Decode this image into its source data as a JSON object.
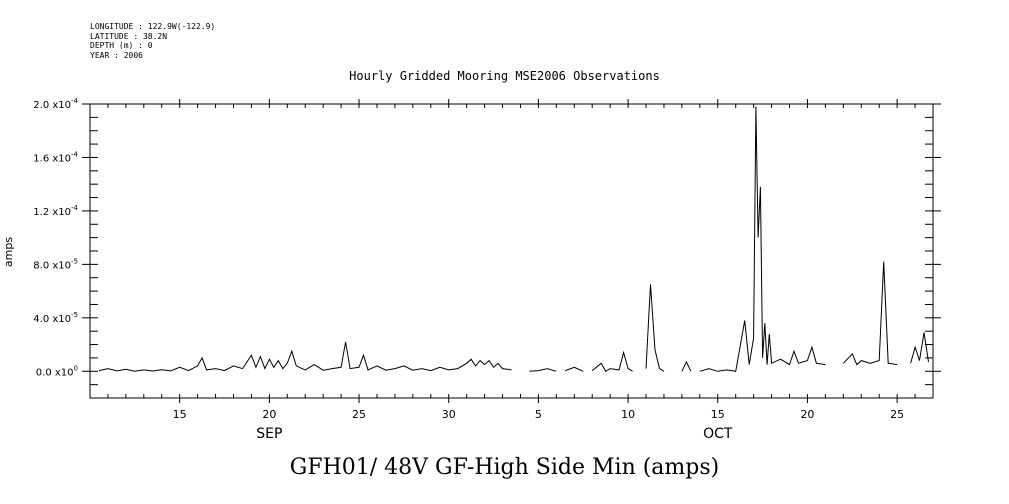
{
  "meta_lines": [
    "LONGITUDE : 122.9W(-122.9)",
    "LATITUDE : 38.2N",
    "DEPTH (m) : 0",
    "YEAR : 2006"
  ],
  "plot_title": "Hourly Gridded Mooring MSE2006 Observations",
  "bottom_title": "GFH01/ 48V GF-High Side Min (amps)",
  "chart_data": {
    "type": "line",
    "title": "Hourly Gridded Mooring MSE2006 Observations",
    "ylabel": "amps",
    "xlabel": "",
    "xlim": [
      "2006-09-10",
      "2006-10-27"
    ],
    "ylim": [
      -2e-05,
      0.0002
    ],
    "y_ticks": [
      {
        "value": 0.0,
        "label": "0.0 x10^0"
      },
      {
        "value": 4e-05,
        "label": "4.0 x10^-5"
      },
      {
        "value": 8e-05,
        "label": "8.0 x10^-5"
      },
      {
        "value": 0.00012,
        "label": "1.2 x10^-4"
      },
      {
        "value": 0.00016,
        "label": "1.6 x10^-4"
      },
      {
        "value": 0.0002,
        "label": "2.0 x10^-4"
      }
    ],
    "x_ticks": [
      {
        "date": "2006-09-15",
        "label": "15"
      },
      {
        "date": "2006-09-20",
        "label": "20"
      },
      {
        "date": "2006-09-25",
        "label": "25"
      },
      {
        "date": "2006-09-30",
        "label": "30"
      },
      {
        "date": "2006-10-05",
        "label": "5"
      },
      {
        "date": "2006-10-10",
        "label": "10"
      },
      {
        "date": "2006-10-15",
        "label": "15"
      },
      {
        "date": "2006-10-20",
        "label": "20"
      },
      {
        "date": "2006-10-25",
        "label": "25"
      }
    ],
    "month_labels": [
      {
        "date": "2006-09-20",
        "label": "SEP"
      },
      {
        "date": "2006-10-15",
        "label": "OCT"
      }
    ],
    "series": [
      {
        "segments": [
          [
            [
              "2006-09-10 12:00",
              5e-07
            ],
            [
              "2006-09-11 00:00",
              2e-06
            ],
            [
              "2006-09-11 12:00",
              3e-07
            ],
            [
              "2006-09-12 00:00",
              1.5e-06
            ],
            [
              "2006-09-12 12:00",
              0.0
            ],
            [
              "2006-09-13 00:00",
              1e-06
            ],
            [
              "2006-09-13 12:00",
              2e-07
            ],
            [
              "2006-09-14 00:00",
              1.2e-06
            ],
            [
              "2006-09-14 12:00",
              3e-07
            ],
            [
              "2006-09-15 00:00",
              3e-06
            ],
            [
              "2006-09-15 12:00",
              5e-07
            ],
            [
              "2006-09-16 00:00",
              4e-06
            ],
            [
              "2006-09-16 06:00",
              1e-05
            ],
            [
              "2006-09-16 12:00",
              1e-06
            ],
            [
              "2006-09-17 00:00",
              2e-06
            ],
            [
              "2006-09-17 12:00",
              5e-07
            ],
            [
              "2006-09-18 00:00",
              4e-06
            ],
            [
              "2006-09-18 12:00",
              2e-06
            ],
            [
              "2006-09-19 00:00",
              1.2e-05
            ],
            [
              "2006-09-19 06:00",
              3e-06
            ],
            [
              "2006-09-19 12:00",
              1.1e-05
            ],
            [
              "2006-09-19 18:00",
              2e-06
            ],
            [
              "2006-09-20 00:00",
              9e-06
            ],
            [
              "2006-09-20 06:00",
              3e-06
            ],
            [
              "2006-09-20 12:00",
              8e-06
            ],
            [
              "2006-09-20 18:00",
              2e-06
            ],
            [
              "2006-09-21 00:00",
              6e-06
            ],
            [
              "2006-09-21 06:00",
              1.5e-05
            ],
            [
              "2006-09-21 12:00",
              4e-06
            ],
            [
              "2006-09-22 00:00",
              1e-06
            ],
            [
              "2006-09-22 12:00",
              5e-06
            ],
            [
              "2006-09-23 00:00",
              8e-07
            ],
            [
              "2006-09-23 12:00",
              2e-06
            ],
            [
              "2006-09-24 00:00",
              3e-06
            ],
            [
              "2006-09-24 06:00",
              2.2e-05
            ],
            [
              "2006-09-24 12:00",
              2e-06
            ],
            [
              "2006-09-25 00:00",
              3e-06
            ],
            [
              "2006-09-25 06:00",
              1.2e-05
            ],
            [
              "2006-09-25 12:00",
              1e-06
            ],
            [
              "2006-09-26 00:00",
              4e-06
            ],
            [
              "2006-09-26 12:00",
              8e-07
            ],
            [
              "2006-09-27 00:00",
              2e-06
            ],
            [
              "2006-09-27 12:00",
              4e-06
            ],
            [
              "2006-09-28 00:00",
              8e-07
            ],
            [
              "2006-09-28 12:00",
              2e-06
            ],
            [
              "2006-09-29 00:00",
              5e-07
            ],
            [
              "2006-09-29 12:00",
              3e-06
            ],
            [
              "2006-09-30 00:00",
              1e-06
            ],
            [
              "2006-09-30 12:00",
              2e-06
            ],
            [
              "2006-10-01 00:00",
              6e-06
            ],
            [
              "2006-10-01 06:00",
              9e-06
            ],
            [
              "2006-10-01 12:00",
              4e-06
            ],
            [
              "2006-10-01 18:00",
              8e-06
            ],
            [
              "2006-10-02 00:00",
              5e-06
            ],
            [
              "2006-10-02 06:00",
              8e-06
            ],
            [
              "2006-10-02 12:00",
              3e-06
            ],
            [
              "2006-10-02 18:00",
              6e-06
            ],
            [
              "2006-10-03 00:00",
              2e-06
            ],
            [
              "2006-10-03 12:00",
              1e-06
            ]
          ],
          [
            [
              "2006-10-04 12:00",
              0.0
            ],
            [
              "2006-10-05 00:00",
              5e-07
            ],
            [
              "2006-10-05 12:00",
              2e-06
            ],
            [
              "2006-10-06 00:00",
              0.0
            ]
          ],
          [
            [
              "2006-10-06 12:00",
              5e-07
            ],
            [
              "2006-10-07 00:00",
              3e-06
            ],
            [
              "2006-10-07 12:00",
              0.0
            ]
          ],
          [
            [
              "2006-10-08 00:00",
              5e-07
            ],
            [
              "2006-10-08 12:00",
              6e-06
            ],
            [
              "2006-10-08 18:00",
              0.0
            ],
            [
              "2006-10-09 00:00",
              2e-06
            ],
            [
              "2006-10-09 12:00",
              1e-06
            ],
            [
              "2006-10-09 18:00",
              1.4e-05
            ],
            [
              "2006-10-10 00:00",
              2e-06
            ],
            [
              "2006-10-10 06:00",
              0.0
            ]
          ],
          [
            [
              "2006-10-11 00:00",
              2e-06
            ],
            [
              "2006-10-11 06:00",
              6.5e-05
            ],
            [
              "2006-10-11 12:00",
              1.6e-05
            ],
            [
              "2006-10-11 18:00",
              2e-06
            ],
            [
              "2006-10-12 00:00",
              0.0
            ]
          ],
          [
            [
              "2006-10-13 00:00",
              0.0
            ],
            [
              "2006-10-13 06:00",
              7e-06
            ],
            [
              "2006-10-13 12:00",
              0.0
            ]
          ],
          [
            [
              "2006-10-14 00:00",
              0.0
            ],
            [
              "2006-10-14 12:00",
              2e-06
            ],
            [
              "2006-10-15 00:00",
              0.0
            ],
            [
              "2006-10-15 12:00",
              1e-06
            ],
            [
              "2006-10-16 00:00",
              0.0
            ],
            [
              "2006-10-16 12:00",
              3.8e-05
            ],
            [
              "2006-10-16 18:00",
              5e-06
            ],
            [
              "2006-10-17 00:00",
              2.5e-05
            ],
            [
              "2006-10-17 03:00",
              0.000198
            ],
            [
              "2006-10-17 06:00",
              0.0001
            ],
            [
              "2006-10-17 09:00",
              0.000138
            ],
            [
              "2006-10-17 12:00",
              1e-05
            ],
            [
              "2006-10-17 15:00",
              3.6e-05
            ],
            [
              "2006-10-17 18:00",
              5e-06
            ],
            [
              "2006-10-17 21:00",
              2.8e-05
            ],
            [
              "2006-10-18 00:00",
              6e-06
            ],
            [
              "2006-10-18 12:00",
              9e-06
            ],
            [
              "2006-10-19 00:00",
              5e-06
            ],
            [
              "2006-10-19 06:00",
              1.5e-05
            ],
            [
              "2006-10-19 12:00",
              6e-06
            ],
            [
              "2006-10-20 00:00",
              8e-06
            ],
            [
              "2006-10-20 06:00",
              1.8e-05
            ],
            [
              "2006-10-20 12:00",
              6e-06
            ],
            [
              "2006-10-21 00:00",
              5e-06
            ]
          ],
          [
            [
              "2006-10-22 00:00",
              6e-06
            ],
            [
              "2006-10-22 12:00",
              1.3e-05
            ],
            [
              "2006-10-22 18:00",
              5e-06
            ],
            [
              "2006-10-23 00:00",
              8e-06
            ],
            [
              "2006-10-23 12:00",
              6e-06
            ],
            [
              "2006-10-24 00:00",
              8e-06
            ],
            [
              "2006-10-24 06:00",
              8.2e-05
            ],
            [
              "2006-10-24 12:00",
              6e-06
            ],
            [
              "2006-10-25 00:00",
              5e-06
            ]
          ],
          [
            [
              "2006-10-25 18:00",
              6e-06
            ],
            [
              "2006-10-26 00:00",
              1.8e-05
            ],
            [
              "2006-10-26 06:00",
              8e-06
            ],
            [
              "2006-10-26 12:00",
              2.9e-05
            ],
            [
              "2006-10-26 18:00",
              7e-06
            ]
          ]
        ]
      }
    ]
  }
}
